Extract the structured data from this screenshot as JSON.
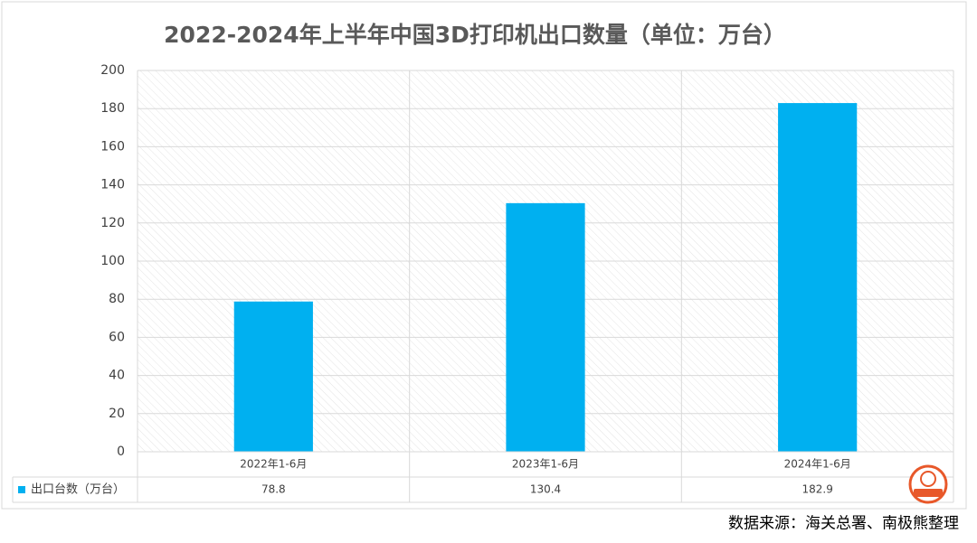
{
  "chart_data": {
    "type": "bar",
    "title": "2022-2024年上半年中国3D打印机出口数量（单位：万台）",
    "categories": [
      "2022年1-6月",
      "2023年1-6月",
      "2024年1-6月"
    ],
    "series": [
      {
        "name": "出口台数（万台）",
        "color": "#00b0f0",
        "values": [
          78.8,
          130.4,
          182.9
        ]
      }
    ],
    "ylim": [
      0,
      200
    ],
    "yticks": [
      0,
      20,
      40,
      60,
      80,
      100,
      120,
      140,
      160,
      180,
      200
    ],
    "grid": true,
    "data_table": true,
    "source": "数据来源：海关总署、南极熊整理"
  }
}
